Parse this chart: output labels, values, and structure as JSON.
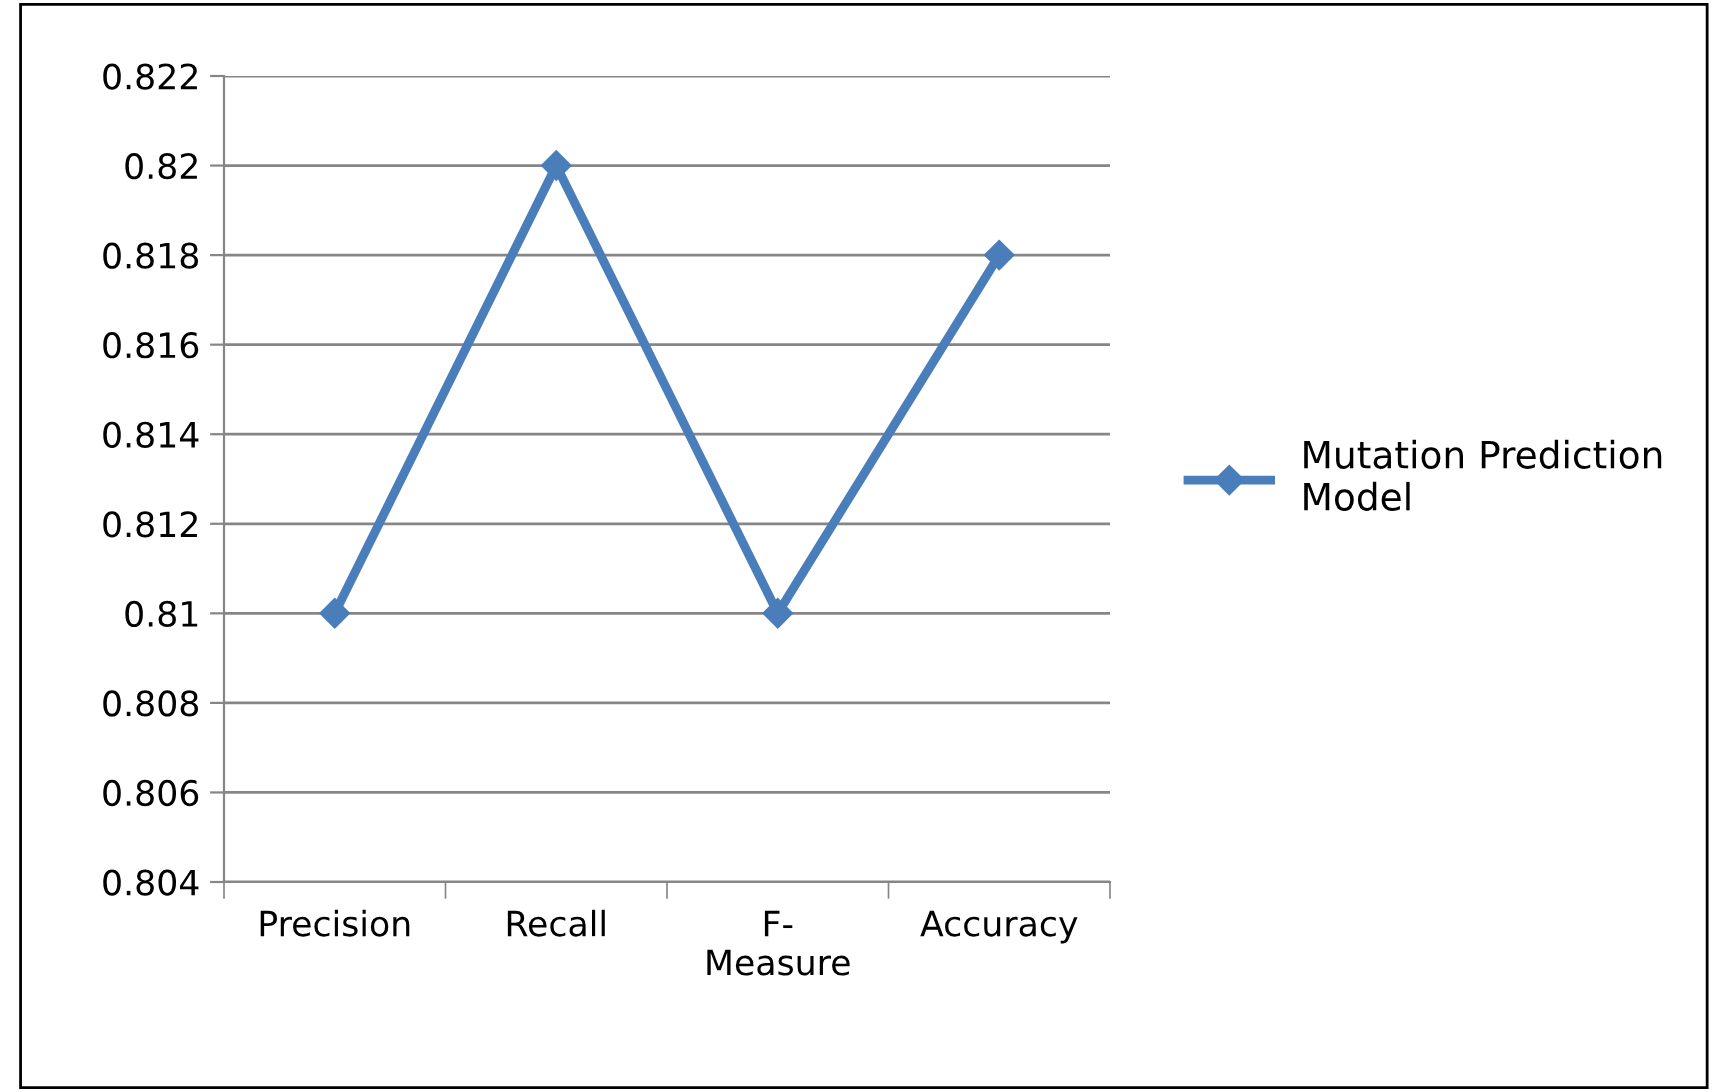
{
  "chart_data": {
    "type": "line",
    "categories": [
      "Precision",
      "Recall",
      "F-Measure",
      "Accuracy"
    ],
    "series": [
      {
        "name": "Mutation Prediction Model",
        "color": "#4a7ebb",
        "values": [
          0.81,
          0.82,
          0.81,
          0.818
        ]
      }
    ],
    "ylim": [
      0.804,
      0.822
    ],
    "yticks": [
      0.804,
      0.806,
      0.808,
      0.81,
      0.812,
      0.814,
      0.816,
      0.818,
      0.82,
      0.822
    ],
    "grid": "y",
    "legend": "right",
    "marker": "diamond",
    "line_style": "solid"
  }
}
